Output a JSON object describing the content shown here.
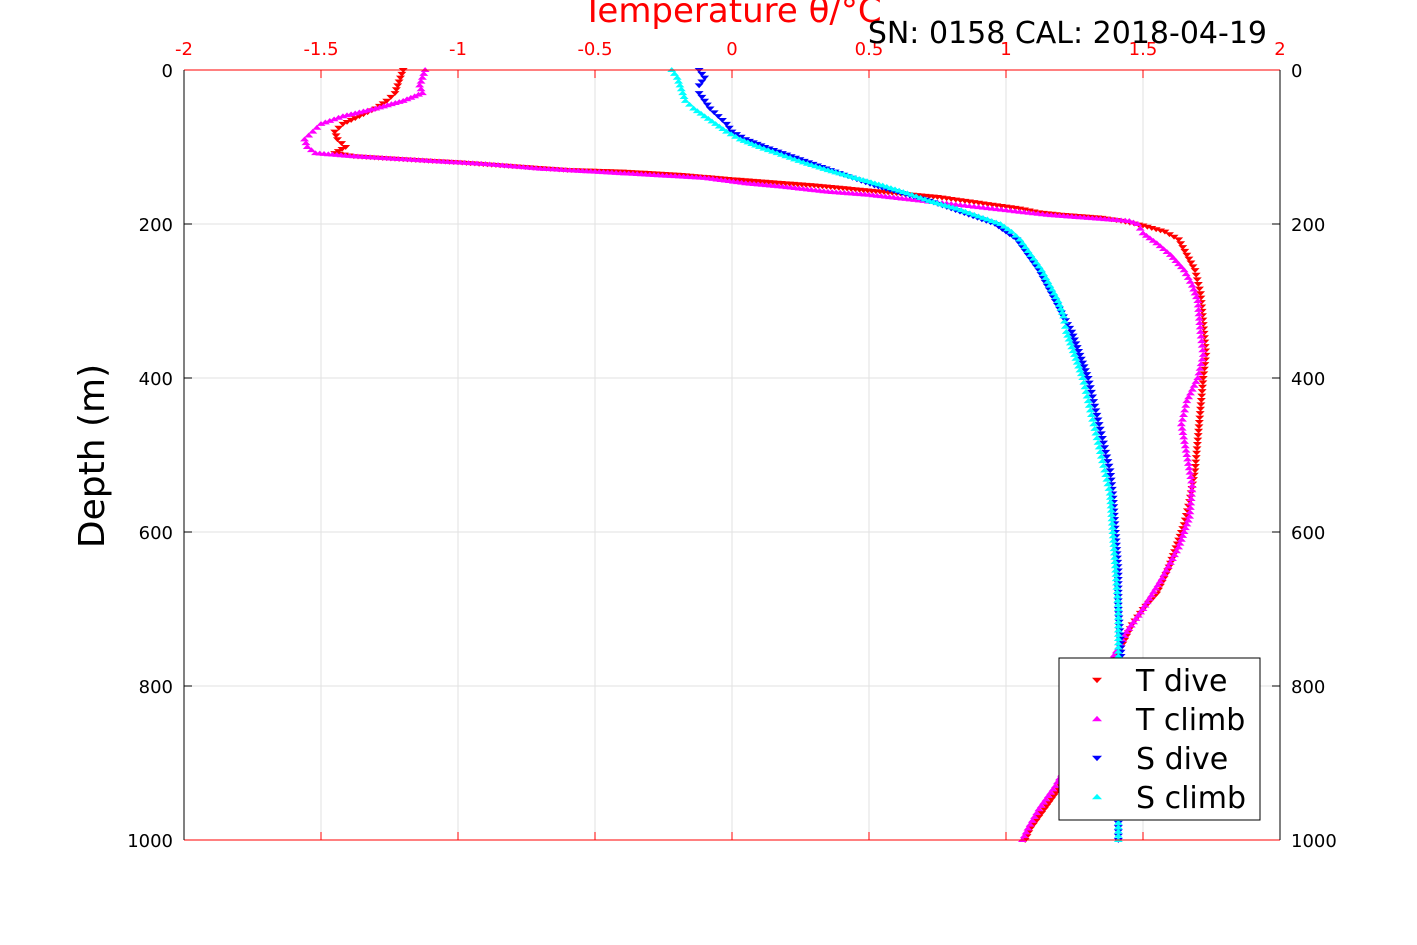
{
  "chart_data": {
    "type": "scatter",
    "xlabel": "Temperature θ/°C",
    "ylabel": "Depth (m)",
    "annotation": "SN: 0158  CAL: 2018-04-19",
    "xlim": [
      -2,
      2
    ],
    "ylim": [
      1000,
      0
    ],
    "x_ticks": [
      "-2",
      "-1.5",
      "-1",
      "-0.5",
      "0",
      "0.5",
      "1",
      "1.5",
      "2"
    ],
    "y_ticks": [
      "0",
      "200",
      "400",
      "600",
      "800",
      "1000"
    ],
    "x_axis_position": "top",
    "y_axis_mirrored_right": true,
    "grid": true,
    "legend": {
      "position": "bottom-right",
      "entries": [
        "T dive",
        "T climb",
        "S dive",
        "S climb"
      ]
    },
    "series": [
      {
        "name": "T dive",
        "color": "#ff0000",
        "marker": "triangle-down",
        "points": [
          [
            -1.2,
            0
          ],
          [
            -1.21,
            10
          ],
          [
            -1.22,
            20
          ],
          [
            -1.23,
            30
          ],
          [
            -1.26,
            40
          ],
          [
            -1.3,
            50
          ],
          [
            -1.36,
            60
          ],
          [
            -1.42,
            70
          ],
          [
            -1.45,
            80
          ],
          [
            -1.44,
            90
          ],
          [
            -1.41,
            100
          ],
          [
            -1.45,
            108
          ],
          [
            -1.38,
            112
          ],
          [
            -1.2,
            116
          ],
          [
            -1.0,
            120
          ],
          [
            -0.8,
            125
          ],
          [
            -0.6,
            130
          ],
          [
            -0.4,
            132
          ],
          [
            -0.2,
            136
          ],
          [
            0.0,
            142
          ],
          [
            0.15,
            146
          ],
          [
            0.3,
            150
          ],
          [
            0.45,
            155
          ],
          [
            0.6,
            160
          ],
          [
            0.75,
            165
          ],
          [
            0.85,
            170
          ],
          [
            0.95,
            175
          ],
          [
            1.05,
            180
          ],
          [
            1.12,
            185
          ],
          [
            1.2,
            188
          ],
          [
            1.35,
            192
          ],
          [
            1.42,
            196
          ],
          [
            1.5,
            202
          ],
          [
            1.58,
            210
          ],
          [
            1.63,
            220
          ],
          [
            1.66,
            240
          ],
          [
            1.69,
            260
          ],
          [
            1.71,
            290
          ],
          [
            1.72,
            330
          ],
          [
            1.73,
            370
          ],
          [
            1.72,
            400
          ],
          [
            1.71,
            440
          ],
          [
            1.7,
            480
          ],
          [
            1.69,
            520
          ],
          [
            1.67,
            560
          ],
          [
            1.65,
            590
          ],
          [
            1.62,
            620
          ],
          [
            1.59,
            650
          ],
          [
            1.55,
            680
          ],
          [
            1.5,
            700
          ],
          [
            1.46,
            720
          ],
          [
            1.42,
            750
          ],
          [
            1.38,
            780
          ],
          [
            1.34,
            810
          ],
          [
            1.3,
            850
          ],
          [
            1.25,
            890
          ],
          [
            1.2,
            930
          ],
          [
            1.14,
            960
          ],
          [
            1.09,
            985
          ],
          [
            1.07,
            1000
          ]
        ]
      },
      {
        "name": "T climb",
        "color": "#ff00ff",
        "marker": "triangle-up",
        "points": [
          [
            -1.12,
            0
          ],
          [
            -1.13,
            10
          ],
          [
            -1.14,
            20
          ],
          [
            -1.13,
            30
          ],
          [
            -1.2,
            40
          ],
          [
            -1.3,
            50
          ],
          [
            -1.42,
            60
          ],
          [
            -1.5,
            70
          ],
          [
            -1.53,
            80
          ],
          [
            -1.56,
            90
          ],
          [
            -1.55,
            100
          ],
          [
            -1.52,
            108
          ],
          [
            -1.38,
            112
          ],
          [
            -1.1,
            118
          ],
          [
            -0.9,
            122
          ],
          [
            -0.7,
            128
          ],
          [
            -0.5,
            132
          ],
          [
            -0.3,
            136
          ],
          [
            -0.1,
            140
          ],
          [
            0.05,
            147
          ],
          [
            0.2,
            152
          ],
          [
            0.35,
            158
          ],
          [
            0.5,
            162
          ],
          [
            0.65,
            168
          ],
          [
            0.75,
            172
          ],
          [
            0.85,
            176
          ],
          [
            0.95,
            180
          ],
          [
            1.05,
            184
          ],
          [
            1.15,
            188
          ],
          [
            1.3,
            192
          ],
          [
            1.45,
            196
          ],
          [
            1.48,
            200
          ],
          [
            1.5,
            212
          ],
          [
            1.55,
            225
          ],
          [
            1.6,
            240
          ],
          [
            1.65,
            260
          ],
          [
            1.68,
            280
          ],
          [
            1.7,
            300
          ],
          [
            1.71,
            340
          ],
          [
            1.72,
            370
          ],
          [
            1.7,
            400
          ],
          [
            1.66,
            430
          ],
          [
            1.64,
            460
          ],
          [
            1.66,
            500
          ],
          [
            1.68,
            540
          ],
          [
            1.67,
            580
          ],
          [
            1.63,
            620
          ],
          [
            1.57,
            660
          ],
          [
            1.5,
            700
          ],
          [
            1.44,
            730
          ],
          [
            1.38,
            770
          ],
          [
            1.34,
            810
          ],
          [
            1.29,
            850
          ],
          [
            1.24,
            890
          ],
          [
            1.18,
            930
          ],
          [
            1.12,
            960
          ],
          [
            1.08,
            985
          ],
          [
            1.06,
            1000
          ]
        ]
      },
      {
        "name": "S dive",
        "color": "#0000ff",
        "marker": "triangle-down",
        "points": [
          [
            -0.12,
            0
          ],
          [
            -0.1,
            10
          ],
          [
            -0.12,
            20
          ],
          [
            -0.12,
            30
          ],
          [
            -0.1,
            40
          ],
          [
            -0.08,
            50
          ],
          [
            -0.05,
            60
          ],
          [
            -0.02,
            70
          ],
          [
            0.0,
            80
          ],
          [
            0.05,
            90
          ],
          [
            0.12,
            100
          ],
          [
            0.2,
            110
          ],
          [
            0.28,
            120
          ],
          [
            0.36,
            130
          ],
          [
            0.44,
            140
          ],
          [
            0.52,
            150
          ],
          [
            0.62,
            160
          ],
          [
            0.72,
            170
          ],
          [
            0.8,
            180
          ],
          [
            0.88,
            190
          ],
          [
            0.96,
            200
          ],
          [
            1.0,
            210
          ],
          [
            1.04,
            220
          ],
          [
            1.08,
            240
          ],
          [
            1.12,
            260
          ],
          [
            1.15,
            280
          ],
          [
            1.18,
            300
          ],
          [
            1.21,
            320
          ],
          [
            1.24,
            340
          ],
          [
            1.26,
            360
          ],
          [
            1.28,
            380
          ],
          [
            1.3,
            400
          ],
          [
            1.32,
            430
          ],
          [
            1.34,
            460
          ],
          [
            1.36,
            490
          ],
          [
            1.38,
            520
          ],
          [
            1.39,
            550
          ],
          [
            1.4,
            600
          ],
          [
            1.41,
            650
          ],
          [
            1.41,
            700
          ],
          [
            1.42,
            750
          ],
          [
            1.42,
            800
          ],
          [
            1.41,
            850
          ],
          [
            1.41,
            900
          ],
          [
            1.41,
            950
          ],
          [
            1.41,
            1000
          ]
        ]
      },
      {
        "name": "S climb",
        "color": "#00ffff",
        "marker": "triangle-up",
        "points": [
          [
            -0.22,
            0
          ],
          [
            -0.2,
            10
          ],
          [
            -0.19,
            20
          ],
          [
            -0.18,
            30
          ],
          [
            -0.17,
            40
          ],
          [
            -0.14,
            50
          ],
          [
            -0.1,
            60
          ],
          [
            -0.06,
            70
          ],
          [
            -0.02,
            80
          ],
          [
            0.03,
            90
          ],
          [
            0.1,
            100
          ],
          [
            0.18,
            110
          ],
          [
            0.26,
            120
          ],
          [
            0.35,
            130
          ],
          [
            0.45,
            140
          ],
          [
            0.55,
            150
          ],
          [
            0.64,
            160
          ],
          [
            0.72,
            170
          ],
          [
            0.82,
            180
          ],
          [
            0.9,
            190
          ],
          [
            0.98,
            200
          ],
          [
            1.02,
            210
          ],
          [
            1.05,
            220
          ],
          [
            1.09,
            240
          ],
          [
            1.13,
            260
          ],
          [
            1.16,
            280
          ],
          [
            1.19,
            300
          ],
          [
            1.21,
            320
          ],
          [
            1.22,
            340
          ],
          [
            1.24,
            360
          ],
          [
            1.26,
            380
          ],
          [
            1.28,
            400
          ],
          [
            1.3,
            430
          ],
          [
            1.32,
            460
          ],
          [
            1.34,
            490
          ],
          [
            1.36,
            520
          ],
          [
            1.38,
            550
          ],
          [
            1.39,
            600
          ],
          [
            1.4,
            650
          ],
          [
            1.41,
            700
          ],
          [
            1.41,
            750
          ],
          [
            1.41,
            800
          ],
          [
            1.41,
            850
          ],
          [
            1.41,
            900
          ],
          [
            1.41,
            950
          ],
          [
            1.41,
            1000
          ]
        ]
      }
    ]
  }
}
